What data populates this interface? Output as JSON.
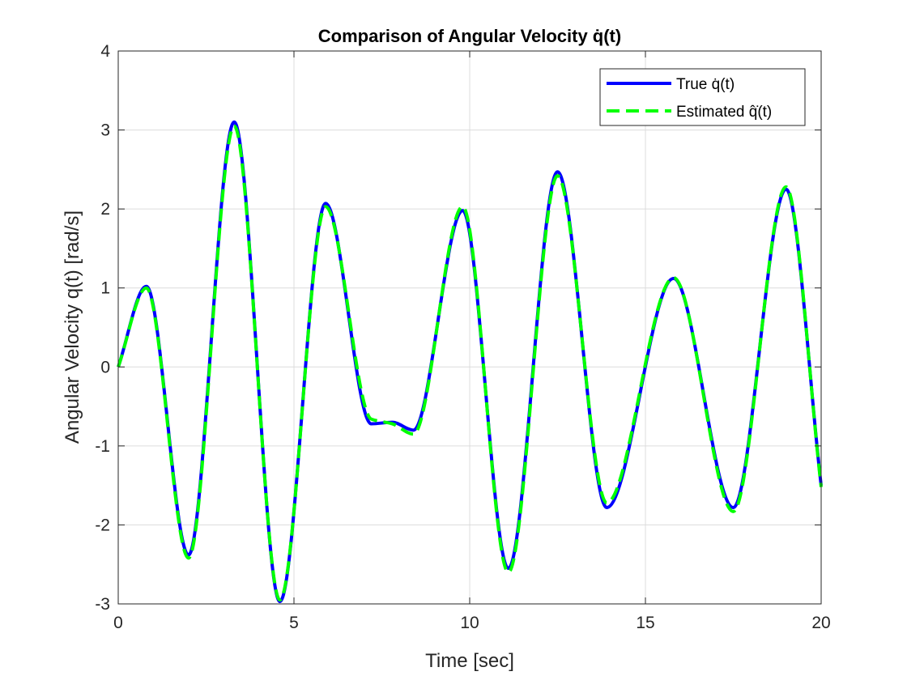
{
  "chart_data": {
    "type": "line",
    "title": "Comparison of Angular Velocity q̇(t)",
    "xlabel": "Time [sec]",
    "ylabel": "Angular Velocity q(t) [rad/s]",
    "xlim": [
      0,
      20
    ],
    "ylim": [
      -3,
      4
    ],
    "xticks": [
      0,
      5,
      10,
      15,
      20
    ],
    "yticks": [
      -3,
      -2,
      -1,
      0,
      1,
      2,
      3,
      4
    ],
    "grid": true,
    "legend_position": "top-right",
    "x": [
      0,
      0.8,
      2.0,
      3.3,
      4.6,
      5.9,
      7.2,
      7.8,
      8.4,
      9.8,
      11.1,
      12.5,
      13.9,
      15.8,
      17.5,
      19.0,
      20.0
    ],
    "series": [
      {
        "name": "True q̇(t)",
        "color": "#0000ff",
        "style": "solid",
        "values": [
          0,
          1.02,
          -2.38,
          3.1,
          -2.97,
          2.07,
          -0.72,
          -0.7,
          -0.8,
          1.98,
          -2.55,
          2.47,
          -1.78,
          1.12,
          -1.78,
          2.25,
          -1.5
        ]
      },
      {
        "name": "Estimated q̂̇(t)",
        "color": "#00ff00",
        "style": "dashed",
        "values": [
          0,
          1.0,
          -2.42,
          3.05,
          -2.95,
          2.03,
          -0.66,
          -0.72,
          -0.85,
          2.03,
          -2.6,
          2.42,
          -1.72,
          1.13,
          -1.83,
          2.28,
          -1.52
        ]
      }
    ]
  }
}
